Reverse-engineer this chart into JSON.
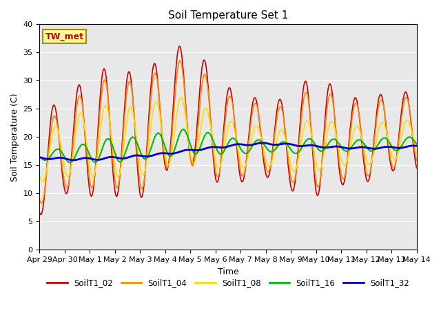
{
  "title": "Soil Temperature Set 1",
  "xlabel": "Time",
  "ylabel": "Soil Temperature (C)",
  "ylim": [
    0,
    40
  ],
  "annotation": "TW_met",
  "x_tick_labels": [
    "Apr 29",
    "Apr 30",
    "May 1",
    "May 2",
    "May 3",
    "May 4",
    "May 5",
    "May 6",
    "May 7",
    "May 8",
    "May 9",
    "May 10",
    "May 11",
    "May 12",
    "May 13",
    "May 14"
  ],
  "series": {
    "SoilT1_02": {
      "color": "#cc0000",
      "linewidth": 1.2
    },
    "SoilT1_04": {
      "color": "#ff8800",
      "linewidth": 1.2
    },
    "SoilT1_08": {
      "color": "#ffdd00",
      "linewidth": 1.2
    },
    "SoilT1_16": {
      "color": "#00bb00",
      "linewidth": 1.5
    },
    "SoilT1_32": {
      "color": "#0000cc",
      "linewidth": 2.0
    }
  },
  "bg_color": "#e8e8e8",
  "title_fontsize": 11,
  "label_fontsize": 9,
  "tick_fontsize": 8
}
